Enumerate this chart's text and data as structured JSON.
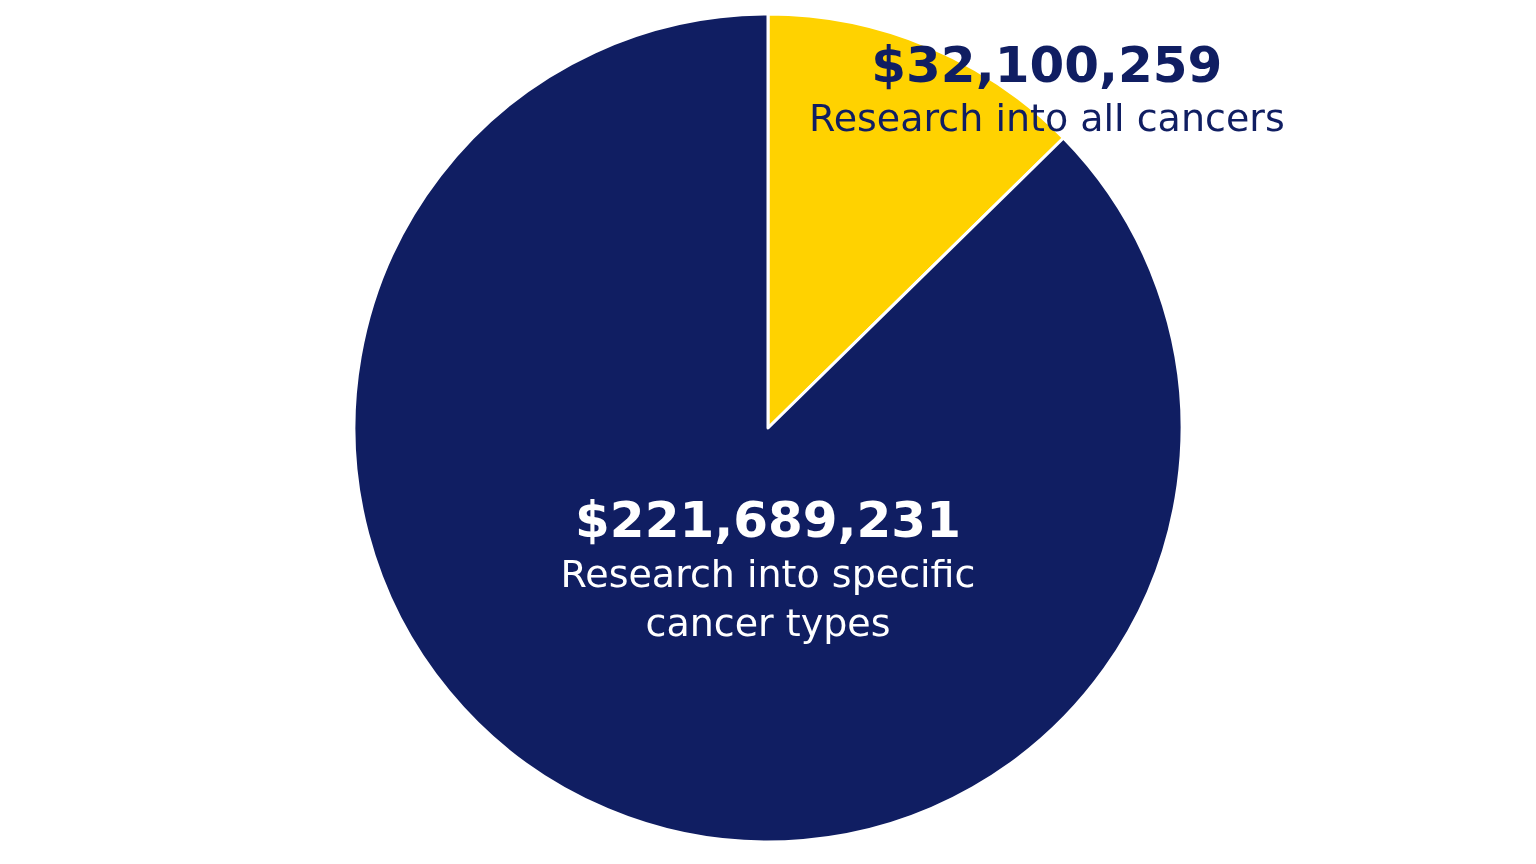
{
  "chart_data": {
    "type": "pie",
    "categories": [
      "Research into all cancers",
      "Research into specific cancer types"
    ],
    "values": [
      32100259,
      221689231
    ],
    "colors": [
      "#ffd200",
      "#101e62"
    ],
    "value_labels": [
      "$32,100,259",
      "$221,689,231"
    ],
    "legend": false
  }
}
